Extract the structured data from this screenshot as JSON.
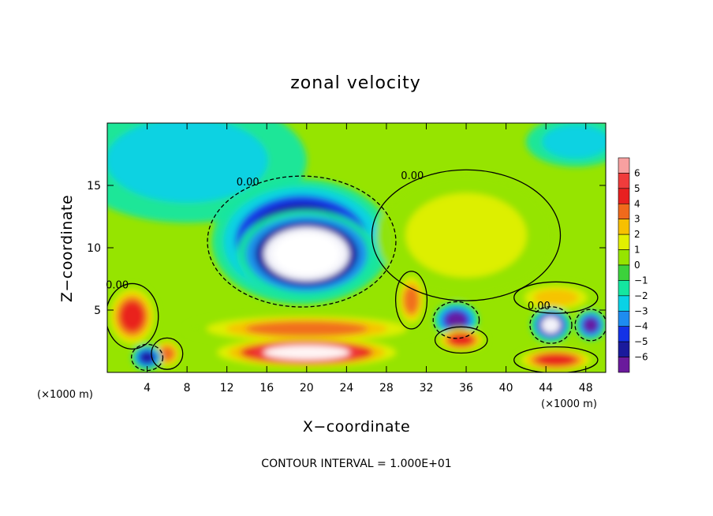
{
  "chart_data": {
    "type": "heatmap",
    "title": "zonal velocity",
    "xlabel": "X−coordinate",
    "ylabel": "Z−coordinate",
    "x_unit": "(×1000 m)",
    "z_unit": "(×1000 m)",
    "xlim": [
      0,
      50
    ],
    "zlim": [
      0,
      20
    ],
    "x_ticks": [
      4,
      8,
      12,
      16,
      20,
      24,
      28,
      32,
      36,
      40,
      44,
      48
    ],
    "z_ticks": [
      5,
      10,
      15
    ],
    "colorbar": {
      "levels": [
        6,
        5,
        4,
        3,
        2,
        1,
        0,
        -1,
        -2,
        -3,
        -4,
        -5,
        -6
      ],
      "labels": [
        "6",
        "5",
        "4",
        "3",
        "2",
        "1",
        "0",
        "−1",
        "−2",
        "−3",
        "−4",
        "−5",
        "−6"
      ],
      "colors": [
        "#f7a0a0",
        "#f03c3c",
        "#e82020",
        "#f06a1c",
        "#f7c000",
        "#e2f000",
        "#96e400",
        "#3cd23c",
        "#14e6a0",
        "#0ad2e6",
        "#1e8cf0",
        "#1432e6",
        "#1a1a9c",
        "#6a1a9c"
      ]
    },
    "contour_labels": [
      "0.00",
      "0.00",
      "0.00",
      "0.00"
    ],
    "contour_interval_text": "CONTOUR INTERVAL = 1.000E+01",
    "features": [
      {
        "kind": "negative_core",
        "x": 19.5,
        "z": 10.5,
        "rx": 9,
        "rz": 5,
        "value": -7
      },
      {
        "kind": "negative_inner",
        "x": 20,
        "z": 9.5,
        "rx": 7,
        "rz": 3.5,
        "value": -9
      },
      {
        "kind": "positive_jet",
        "x": 20,
        "z": 3.5,
        "rx": 12,
        "rz": 1.2,
        "value": 4
      },
      {
        "kind": "positive_max",
        "x": 20,
        "z": 1.6,
        "rx": 9,
        "rz": 1.2,
        "value": 7
      },
      {
        "kind": "positive_cell",
        "x": 30.5,
        "z": 5.8,
        "rx": 1.5,
        "rz": 2.2,
        "value": 4
      },
      {
        "kind": "positive_cell",
        "x": 2.5,
        "z": 4.5,
        "rx": 2.5,
        "rz": 2.5,
        "value": 5
      },
      {
        "kind": "positive_cell",
        "x": 6,
        "z": 1.5,
        "rx": 1.5,
        "rz": 1.2,
        "value": 4
      },
      {
        "kind": "positive_cell",
        "x": 35.5,
        "z": 2.6,
        "rx": 2.5,
        "rz": 1,
        "value": 5
      },
      {
        "kind": "positive_cell",
        "x": 45,
        "z": 1,
        "rx": 4,
        "rz": 1,
        "value": 5
      },
      {
        "kind": "positive_cell",
        "x": 45,
        "z": 6,
        "rx": 4,
        "rz": 1.2,
        "value": 3
      },
      {
        "kind": "negative_cell",
        "x": 35,
        "z": 4.2,
        "rx": 2.2,
        "rz": 1.4,
        "value": -6
      },
      {
        "kind": "negative_cell",
        "x": 44.5,
        "z": 3.8,
        "rx": 2,
        "rz": 1.4,
        "value": -7
      },
      {
        "kind": "negative_cell",
        "x": 48.5,
        "z": 3.8,
        "rx": 1.5,
        "rz": 1.2,
        "value": -6
      },
      {
        "kind": "negative_cell",
        "x": 4,
        "z": 1.2,
        "rx": 1.5,
        "rz": 1,
        "value": -5
      },
      {
        "kind": "positive_region",
        "x": 36,
        "z": 11,
        "rx": 9,
        "rz": 5,
        "value": 2
      },
      {
        "kind": "negative_region",
        "x": 8,
        "z": 17,
        "rx": 12,
        "rz": 5,
        "value": -2
      },
      {
        "kind": "negative_region",
        "x": 47,
        "z": 18.5,
        "rx": 5,
        "rz": 2,
        "value": -2
      }
    ]
  }
}
